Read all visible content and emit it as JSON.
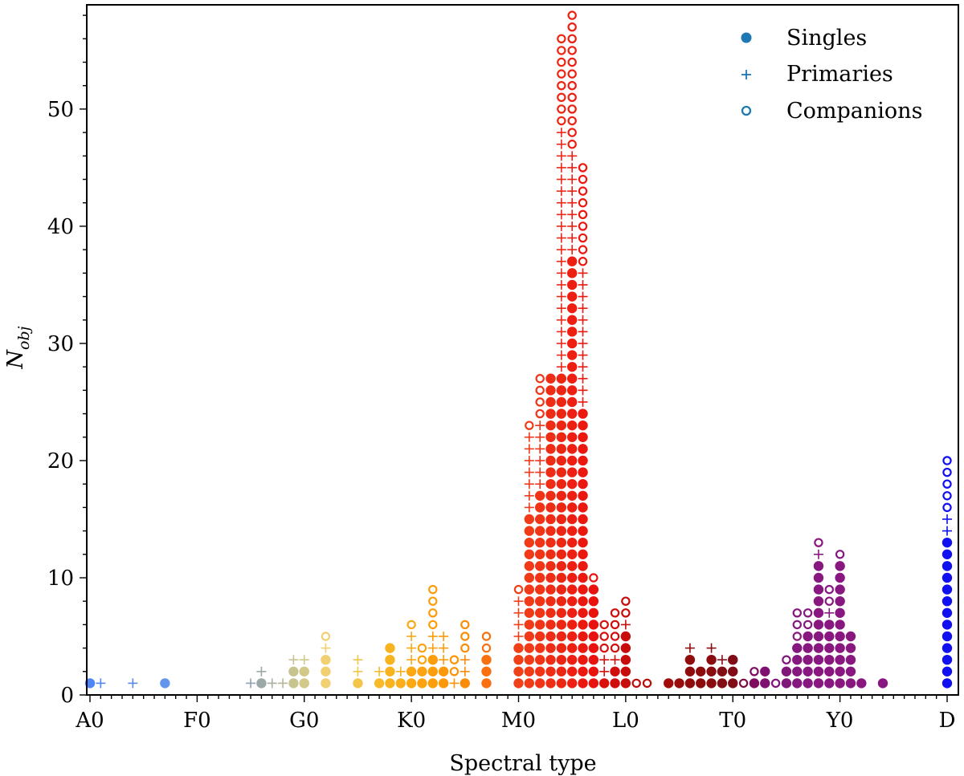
{
  "chart_data": {
    "type": "scatter",
    "title": "",
    "xlabel": "Spectral type",
    "ylabel": "N_obj",
    "ylabel_main": "N",
    "ylabel_sub": "obj",
    "x_ticks": [
      "A0",
      "F0",
      "G0",
      "K0",
      "M0",
      "L0",
      "T0",
      "Y0",
      "D"
    ],
    "xlim": [
      0,
      80
    ],
    "ylim": [
      0,
      59
    ],
    "y_ticks": [
      "0",
      "10",
      "20",
      "30",
      "40",
      "50"
    ],
    "legend": {
      "position": "top-right",
      "entries": [
        {
          "label": "Singles",
          "marker": "filled-circle"
        },
        {
          "label": "Primaries",
          "marker": "plus"
        },
        {
          "label": "Companions",
          "marker": "open-circle"
        }
      ],
      "color": "#1f77b4"
    },
    "columns": [
      {
        "x": 0,
        "singles": 1,
        "primaries": 0,
        "companions": 0,
        "color": "#4f86f7"
      },
      {
        "x": 1,
        "singles": 0,
        "primaries": 1,
        "companions": 0,
        "color": "#4f86f7"
      },
      {
        "x": 4,
        "singles": 0,
        "primaries": 1,
        "companions": 0,
        "color": "#5a8be0"
      },
      {
        "x": 7,
        "singles": 1,
        "primaries": 0,
        "companions": 0,
        "color": "#6495ed"
      },
      {
        "x": 15,
        "singles": 0,
        "primaries": 1,
        "companions": 0,
        "color": "#8fa3b4"
      },
      {
        "x": 16,
        "singles": 1,
        "primaries": 1,
        "companions": 0,
        "color": "#9aa9a8"
      },
      {
        "x": 17,
        "singles": 0,
        "primaries": 1,
        "companions": 0,
        "color": "#a8b0a0"
      },
      {
        "x": 18,
        "singles": 0,
        "primaries": 1,
        "companions": 0,
        "color": "#b5b898"
      },
      {
        "x": 19,
        "singles": 2,
        "primaries": 1,
        "companions": 0,
        "color": "#c8c490"
      },
      {
        "x": 20,
        "singles": 2,
        "primaries": 1,
        "companions": 0,
        "color": "#d2c888"
      },
      {
        "x": 22,
        "singles": 3,
        "primaries": 1,
        "companions": 1,
        "color": "#f0d070"
      },
      {
        "x": 25,
        "singles": 1,
        "primaries": 2,
        "companions": 0,
        "color": "#f3c64a"
      },
      {
        "x": 27,
        "singles": 1,
        "primaries": 1,
        "companions": 0,
        "color": "#f7ba2a"
      },
      {
        "x": 28,
        "singles": 4,
        "primaries": 0,
        "companions": 0,
        "color": "#f8b420"
      },
      {
        "x": 29,
        "singles": 1,
        "primaries": 1,
        "companions": 0,
        "color": "#f9ae1a"
      },
      {
        "x": 30,
        "singles": 2,
        "primaries": 3,
        "companions": 1,
        "color": "#faa814"
      },
      {
        "x": 31,
        "singles": 2,
        "primaries": 0,
        "companions": 2,
        "color": "#fba310"
      },
      {
        "x": 32,
        "singles": 3,
        "primaries": 2,
        "companions": 4,
        "color": "#fc9e0c"
      },
      {
        "x": 33,
        "singles": 2,
        "primaries": 3,
        "companions": 0,
        "color": "#fc990a"
      },
      {
        "x": 34,
        "singles": 0,
        "primaries": 1,
        "companions": 2,
        "color": "#fc9408"
      },
      {
        "x": 35,
        "singles": 1,
        "primaries": 2,
        "companions": 3,
        "color": "#fb8c08"
      },
      {
        "x": 37,
        "singles": 3,
        "primaries": 0,
        "companions": 2,
        "color": "#f87010"
      },
      {
        "x": 40,
        "singles": 4,
        "primaries": 4,
        "companions": 1,
        "color": "#f04018"
      },
      {
        "x": 41,
        "singles": 15,
        "primaries": 7,
        "companions": 1,
        "color": "#f03a18"
      },
      {
        "x": 42,
        "singles": 17,
        "primaries": 6,
        "companions": 4,
        "color": "#f03418"
      },
      {
        "x": 43,
        "singles": 27,
        "primaries": 0,
        "companions": 0,
        "color": "#ee2d16"
      },
      {
        "x": 44,
        "singles": 27,
        "primaries": 21,
        "companions": 8,
        "color": "#ed2614"
      },
      {
        "x": 45,
        "singles": 37,
        "primaries": 9,
        "companions": 12,
        "color": "#ec1f12"
      },
      {
        "x": 46,
        "singles": 24,
        "primaries": 12,
        "companions": 9,
        "color": "#eb1810"
      },
      {
        "x": 47,
        "singles": 9,
        "primaries": 0,
        "companions": 1,
        "color": "#ea120e"
      },
      {
        "x": 48,
        "singles": 1,
        "primaries": 2,
        "companions": 3,
        "color": "#d8100c"
      },
      {
        "x": 49,
        "singles": 2,
        "primaries": 1,
        "companions": 4,
        "color": "#d00e0c"
      },
      {
        "x": 50,
        "singles": 5,
        "primaries": 1,
        "companions": 2,
        "color": "#c80c0c"
      },
      {
        "x": 51,
        "singles": 0,
        "primaries": 0,
        "companions": 1,
        "color": "#c00c0c"
      },
      {
        "x": 52,
        "singles": 0,
        "primaries": 0,
        "companions": 1,
        "color": "#b80c0c"
      },
      {
        "x": 54,
        "singles": 1,
        "primaries": 0,
        "companions": 0,
        "color": "#a00c0c"
      },
      {
        "x": 55,
        "singles": 1,
        "primaries": 0,
        "companions": 0,
        "color": "#980c0c"
      },
      {
        "x": 56,
        "singles": 3,
        "primaries": 1,
        "companions": 0,
        "color": "#900c0c"
      },
      {
        "x": 57,
        "singles": 2,
        "primaries": 0,
        "companions": 0,
        "color": "#8c0c0c"
      },
      {
        "x": 58,
        "singles": 3,
        "primaries": 1,
        "companions": 0,
        "color": "#880c10"
      },
      {
        "x": 59,
        "singles": 2,
        "primaries": 1,
        "companions": 0,
        "color": "#840c14"
      },
      {
        "x": 60,
        "singles": 3,
        "primaries": 0,
        "companions": 0,
        "color": "#800c18"
      },
      {
        "x": 61,
        "singles": 0,
        "primaries": 0,
        "companions": 1,
        "color": "#800c40"
      },
      {
        "x": 62,
        "singles": 1,
        "primaries": 0,
        "companions": 1,
        "color": "#800c60"
      },
      {
        "x": 63,
        "singles": 2,
        "primaries": 0,
        "companions": 0,
        "color": "#801070"
      },
      {
        "x": 64,
        "singles": 0,
        "primaries": 0,
        "companions": 1,
        "color": "#801478"
      },
      {
        "x": 65,
        "singles": 2,
        "primaries": 0,
        "companions": 1,
        "color": "#80187c"
      },
      {
        "x": 66,
        "singles": 4,
        "primaries": 0,
        "companions": 3,
        "color": "#84187e"
      },
      {
        "x": 67,
        "singles": 5,
        "primaries": 0,
        "companions": 2,
        "color": "#86187f"
      },
      {
        "x": 68,
        "singles": 11,
        "primaries": 1,
        "companions": 1,
        "color": "#881880"
      },
      {
        "x": 69,
        "singles": 6,
        "primaries": 1,
        "companions": 2,
        "color": "#881880"
      },
      {
        "x": 70,
        "singles": 11,
        "primaries": 0,
        "companions": 1,
        "color": "#881880"
      },
      {
        "x": 71,
        "singles": 5,
        "primaries": 0,
        "companions": 0,
        "color": "#881880"
      },
      {
        "x": 72,
        "singles": 1,
        "primaries": 0,
        "companions": 0,
        "color": "#881880"
      },
      {
        "x": 74,
        "singles": 1,
        "primaries": 0,
        "companions": 0,
        "color": "#881880"
      },
      {
        "x": 80,
        "singles": 13,
        "primaries": 2,
        "companions": 5,
        "color": "#1010f0"
      }
    ]
  }
}
